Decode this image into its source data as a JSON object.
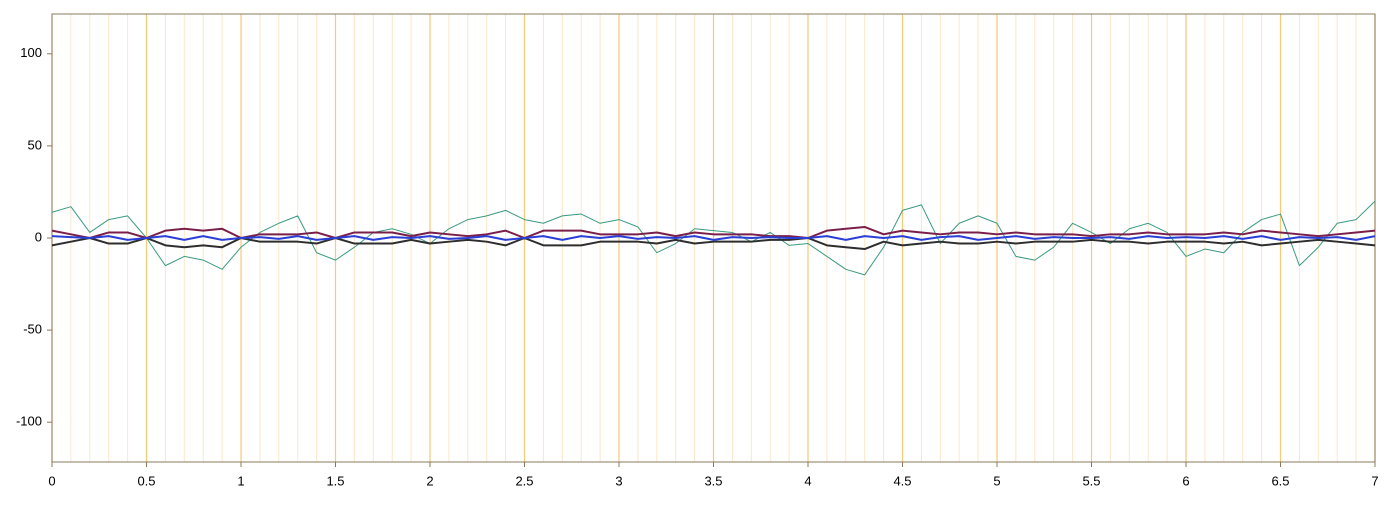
{
  "chart_data": {
    "type": "line",
    "x": [
      0,
      0.1,
      0.2,
      0.3,
      0.4,
      0.5,
      0.6,
      0.7,
      0.8,
      0.9,
      1,
      1.1,
      1.2,
      1.3,
      1.4,
      1.5,
      1.6,
      1.7,
      1.8,
      1.9,
      2,
      2.1,
      2.2,
      2.3,
      2.4,
      2.5,
      2.6,
      2.7,
      2.8,
      2.9,
      3,
      3.1,
      3.2,
      3.3,
      3.4,
      3.5,
      3.6,
      3.7,
      3.8,
      3.9,
      4,
      4.1,
      4.2,
      4.3,
      4.4,
      4.5,
      4.6,
      4.7,
      4.8,
      4.9,
      5,
      5.1,
      5.2,
      5.3,
      5.4,
      5.5,
      5.6,
      5.7,
      5.8,
      5.9,
      6,
      6.1,
      6.2,
      6.3,
      6.4,
      6.5,
      6.6,
      6.7,
      6.8,
      6.9,
      7
    ],
    "series": [
      {
        "color": "#3a9a80",
        "values": [
          14,
          17,
          3,
          10,
          12,
          0,
          -15,
          -10,
          -12,
          -17,
          -5,
          3,
          8,
          12,
          -8,
          -12,
          -5,
          3,
          5,
          2,
          -3,
          5,
          10,
          12,
          15,
          10,
          8,
          12,
          13,
          8,
          10,
          6,
          -8,
          -3,
          5,
          4,
          3,
          -2,
          3,
          -4,
          -3,
          -10,
          -17,
          -20,
          -5,
          15,
          18,
          -3,
          8,
          12,
          8,
          -10,
          -12,
          -5,
          8,
          3,
          -3,
          5,
          8,
          3,
          -10,
          -6,
          -8,
          3,
          10,
          13,
          -15,
          -5,
          8,
          10,
          20
        ]
      },
      {
        "color": "#7a1f4a",
        "values": [
          4,
          2,
          0,
          3,
          3,
          0,
          4,
          5,
          4,
          5,
          0,
          2,
          2,
          2,
          3,
          0,
          3,
          3,
          3,
          1,
          3,
          2,
          1,
          2,
          4,
          0,
          4,
          4,
          4,
          2,
          2,
          2,
          3,
          1,
          3,
          2,
          2,
          2,
          1,
          1,
          0,
          4,
          5,
          6,
          2,
          4,
          3,
          2,
          3,
          3,
          2,
          3,
          2,
          2,
          2,
          1,
          2,
          2,
          3,
          2,
          2,
          2,
          3,
          2,
          4,
          3,
          2,
          1,
          2,
          3,
          4
        ]
      },
      {
        "color": "#2e2e2e",
        "values": [
          -4,
          -2,
          0,
          -3,
          -3,
          0,
          -4,
          -5,
          -4,
          -5,
          0,
          -2,
          -2,
          -2,
          -3,
          0,
          -3,
          -3,
          -3,
          -1,
          -3,
          -2,
          -1,
          -2,
          -4,
          0,
          -4,
          -4,
          -4,
          -2,
          -2,
          -2,
          -3,
          -1,
          -3,
          -2,
          -2,
          -2,
          -1,
          -1,
          0,
          -4,
          -5,
          -6,
          -2,
          -4,
          -3,
          -2,
          -3,
          -3,
          -2,
          -3,
          -2,
          -2,
          -2,
          -1,
          -2,
          -2,
          -3,
          -2,
          -2,
          -2,
          -3,
          -2,
          -4,
          -3,
          -2,
          -1,
          -2,
          -3,
          -4
        ]
      },
      {
        "color": "#2a3fd6",
        "values": [
          1,
          0.5,
          0,
          1,
          -1,
          0,
          1,
          -1,
          1,
          -1,
          0,
          0.5,
          -0.5,
          1,
          -1,
          0,
          1,
          -1,
          0.5,
          0,
          1,
          -0.5,
          0,
          1,
          -1,
          0,
          1,
          -1,
          1,
          0,
          1,
          -0.5,
          0.5,
          0,
          1,
          -1,
          0.5,
          0,
          0.5,
          0,
          0,
          1,
          -1,
          1,
          0,
          1,
          -1,
          0.5,
          1,
          -1,
          0,
          1,
          -0.5,
          0.5,
          0,
          0,
          0.5,
          -0.5,
          1,
          0,
          0.5,
          0,
          1,
          -0.5,
          1,
          -1,
          0.5,
          0,
          0.5,
          -1,
          1
        ]
      }
    ],
    "xlim": [
      0,
      7
    ],
    "ylim": [
      -121.6,
      121.6
    ],
    "xticks": [
      0,
      0.5,
      1,
      1.5,
      2,
      2.5,
      3,
      3.5,
      4,
      4.5,
      5,
      5.5,
      6,
      6.5,
      7
    ],
    "minor_xticks": [
      0.1,
      0.2,
      0.3,
      0.4,
      0.6,
      0.7,
      0.8,
      0.9,
      1.1,
      1.2,
      1.3,
      1.4,
      1.6,
      1.7,
      1.8,
      1.9,
      2.1,
      2.2,
      2.3,
      2.4,
      2.6,
      2.7,
      2.8,
      2.9,
      3.1,
      3.2,
      3.3,
      3.4,
      3.6,
      3.7,
      3.8,
      3.9,
      4.1,
      4.2,
      4.3,
      4.4,
      4.6,
      4.7,
      4.8,
      4.9,
      5.1,
      5.2,
      5.3,
      5.4,
      5.6,
      5.7,
      5.8,
      5.9,
      6.1,
      6.2,
      6.3,
      6.4,
      6.6,
      6.7,
      6.8,
      6.9
    ],
    "yticks": [
      -100,
      -50,
      0,
      50,
      100
    ],
    "grid": true
  }
}
